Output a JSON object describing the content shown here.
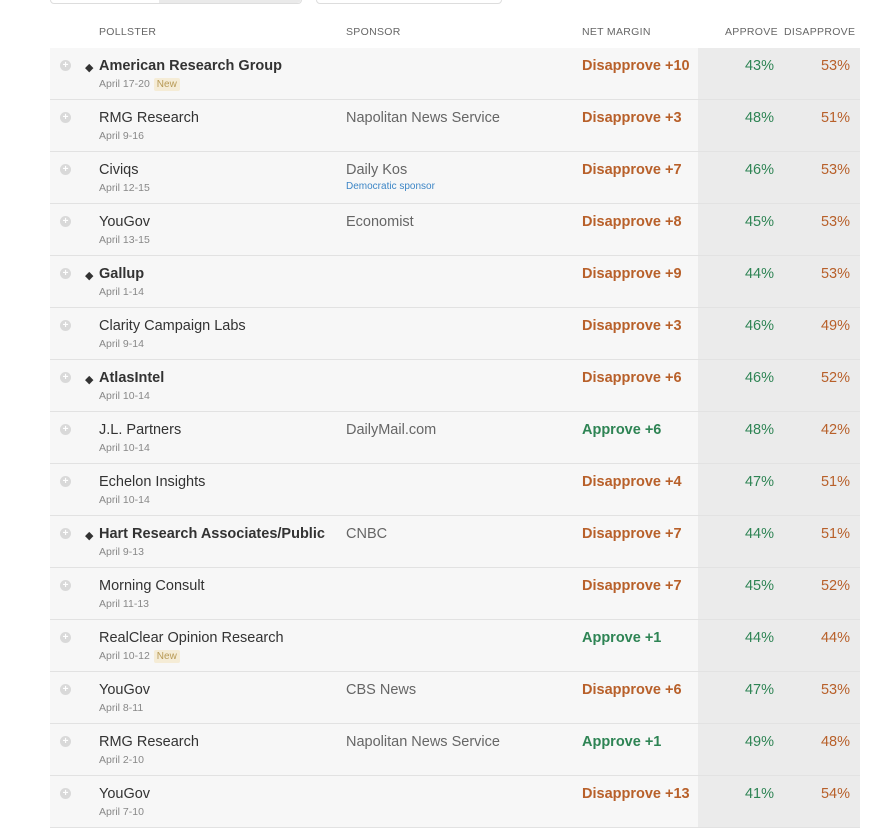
{
  "header": {
    "pollster": "POLLSTER",
    "sponsor": "SPONSOR",
    "net_margin": "NET MARGIN",
    "approve": "APPROVE",
    "disapprove": "DISAPPROVE"
  },
  "icons": {
    "expand": "plus-circle-icon",
    "rated": "diamond-icon"
  },
  "colors": {
    "disapprove": "#b8602a",
    "approve": "#2e8454",
    "sponsor_note": "#3d86c6",
    "badge_bg": "#f5ecd6"
  },
  "rows": [
    {
      "pollster": "American Research Group",
      "bold": true,
      "dates": "April 17-20",
      "badge": "New",
      "sponsor": "",
      "sponsor_note": "",
      "net": "Disapprove +10",
      "net_type": "dis",
      "approve": "43%",
      "disapprove": "53%"
    },
    {
      "pollster": "RMG Research",
      "bold": false,
      "dates": "April 9-16",
      "badge": "",
      "sponsor": "Napolitan News Service",
      "sponsor_note": "",
      "net": "Disapprove +3",
      "net_type": "dis",
      "approve": "48%",
      "disapprove": "51%"
    },
    {
      "pollster": "Civiqs",
      "bold": false,
      "dates": "April 12-15",
      "badge": "",
      "sponsor": "Daily Kos",
      "sponsor_note": "Democratic sponsor",
      "net": "Disapprove +7",
      "net_type": "dis",
      "approve": "46%",
      "disapprove": "53%"
    },
    {
      "pollster": "YouGov",
      "bold": false,
      "dates": "April 13-15",
      "badge": "",
      "sponsor": "Economist",
      "sponsor_note": "",
      "net": "Disapprove +8",
      "net_type": "dis",
      "approve": "45%",
      "disapprove": "53%"
    },
    {
      "pollster": "Gallup",
      "bold": true,
      "dates": "April 1-14",
      "badge": "",
      "sponsor": "",
      "sponsor_note": "",
      "net": "Disapprove +9",
      "net_type": "dis",
      "approve": "44%",
      "disapprove": "53%"
    },
    {
      "pollster": "Clarity Campaign Labs",
      "bold": false,
      "dates": "April 9-14",
      "badge": "",
      "sponsor": "",
      "sponsor_note": "",
      "net": "Disapprove +3",
      "net_type": "dis",
      "approve": "46%",
      "disapprove": "49%"
    },
    {
      "pollster": "AtlasIntel",
      "bold": true,
      "dates": "April 10-14",
      "badge": "",
      "sponsor": "",
      "sponsor_note": "",
      "net": "Disapprove +6",
      "net_type": "dis",
      "approve": "46%",
      "disapprove": "52%"
    },
    {
      "pollster": "J.L. Partners",
      "bold": false,
      "dates": "April 10-14",
      "badge": "",
      "sponsor": "DailyMail.com",
      "sponsor_note": "",
      "net": "Approve +6",
      "net_type": "app",
      "approve": "48%",
      "disapprove": "42%"
    },
    {
      "pollster": "Echelon Insights",
      "bold": false,
      "dates": "April 10-14",
      "badge": "",
      "sponsor": "",
      "sponsor_note": "",
      "net": "Disapprove +4",
      "net_type": "dis",
      "approve": "47%",
      "disapprove": "51%"
    },
    {
      "pollster": "Hart Research Associates/Public Opinion Strategies",
      "bold": true,
      "dates": "April 9-13",
      "badge": "",
      "sponsor": "CNBC",
      "sponsor_note": "",
      "net": "Disapprove +7",
      "net_type": "dis",
      "approve": "44%",
      "disapprove": "51%"
    },
    {
      "pollster": "Morning Consult",
      "bold": false,
      "dates": "April 11-13",
      "badge": "",
      "sponsor": "",
      "sponsor_note": "",
      "net": "Disapprove +7",
      "net_type": "dis",
      "approve": "45%",
      "disapprove": "52%"
    },
    {
      "pollster": "RealClear Opinion Research",
      "bold": false,
      "dates": "April 10-12",
      "badge": "New",
      "sponsor": "",
      "sponsor_note": "",
      "net": "Approve +1",
      "net_type": "app",
      "approve": "44%",
      "disapprove": "44%"
    },
    {
      "pollster": "YouGov",
      "bold": false,
      "dates": "April 8-11",
      "badge": "",
      "sponsor": "CBS News",
      "sponsor_note": "",
      "net": "Disapprove +6",
      "net_type": "dis",
      "approve": "47%",
      "disapprove": "53%"
    },
    {
      "pollster": "RMG Research",
      "bold": false,
      "dates": "April 2-10",
      "badge": "",
      "sponsor": "Napolitan News Service",
      "sponsor_note": "",
      "net": "Approve +1",
      "net_type": "app",
      "approve": "49%",
      "disapprove": "48%"
    },
    {
      "pollster": "YouGov",
      "bold": false,
      "dates": "April 7-10",
      "badge": "",
      "sponsor": "",
      "sponsor_note": "",
      "net": "Disapprove +13",
      "net_type": "dis",
      "approve": "41%",
      "disapprove": "54%"
    }
  ]
}
